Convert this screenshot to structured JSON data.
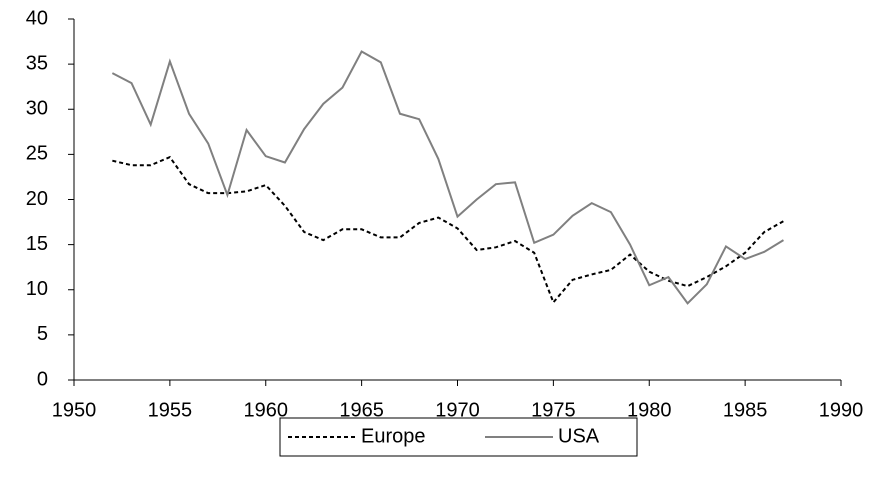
{
  "chart_data": {
    "type": "line",
    "x": [
      1952,
      1953,
      1954,
      1955,
      1956,
      1957,
      1958,
      1959,
      1960,
      1961,
      1962,
      1963,
      1964,
      1965,
      1966,
      1967,
      1968,
      1969,
      1970,
      1971,
      1972,
      1973,
      1974,
      1975,
      1976,
      1977,
      1978,
      1979,
      1980,
      1981,
      1982,
      1983,
      1984,
      1985,
      1986,
      1987
    ],
    "series": [
      {
        "name": "Europe",
        "color": "#000000",
        "dash": "dotted",
        "values": [
          24.3,
          23.8,
          23.8,
          24.7,
          21.7,
          20.7,
          20.7,
          20.9,
          21.6,
          19.3,
          16.4,
          15.5,
          16.7,
          16.7,
          15.8,
          15.8,
          17.4,
          18.0,
          16.8,
          14.4,
          14.7,
          15.4,
          14.1,
          8.6,
          11.1,
          11.7,
          12.2,
          13.9,
          12.0,
          11.0,
          10.4,
          11.4,
          12.6,
          14.1,
          16.4,
          17.6
        ]
      },
      {
        "name": "USA",
        "color": "#808080",
        "dash": "solid",
        "values": [
          34.0,
          32.9,
          28.3,
          35.3,
          29.5,
          26.2,
          20.5,
          27.7,
          24.8,
          24.1,
          27.8,
          30.6,
          32.4,
          36.4,
          35.2,
          29.5,
          28.9,
          24.5,
          18.1,
          20.0,
          21.7,
          21.9,
          15.2,
          16.1,
          18.2,
          19.6,
          18.6,
          15.0,
          10.5,
          11.4,
          8.5,
          10.6,
          14.8,
          13.4,
          14.2,
          15.5
        ]
      }
    ],
    "xlim": [
      1950,
      1990
    ],
    "xticks": [
      1950,
      1955,
      1960,
      1965,
      1970,
      1975,
      1980,
      1985,
      1990
    ],
    "ylim": [
      0,
      40
    ],
    "yticks": [
      0,
      5,
      10,
      15,
      20,
      25,
      30,
      35,
      40
    ],
    "grid": false,
    "legend": "bottom"
  }
}
